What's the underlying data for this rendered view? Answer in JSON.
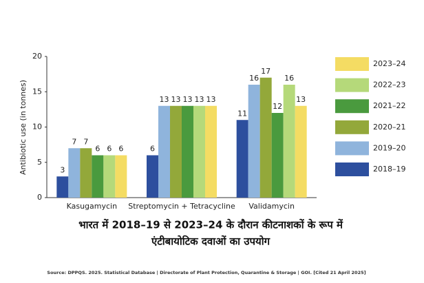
{
  "chart_data": {
    "type": "bar",
    "title": [
      "भारत में 2018–19 से 2023–24 के दौरान कीटनाशकों के रूप में",
      "एंटीबायोटिक दवाओं का उपयोग"
    ],
    "y_label": "Antibiotic use (in tonnes)",
    "source": "Source: DPPQS. 2025. Statistical Database | Directorate of Plant Protection, Quarantine & Storage | GOI. [Cited 21 April 2025]",
    "categories": [
      "Kasugamycin",
      "Streptomycin + Tetracycline",
      "Validamycin"
    ],
    "series": [
      {
        "name": "2018–19",
        "color": "#2d4f9e",
        "values": [
          3,
          6,
          11
        ]
      },
      {
        "name": "2019–20",
        "color": "#8fb4dc",
        "values": [
          7,
          13,
          16
        ]
      },
      {
        "name": "2020–21",
        "color": "#93a83a",
        "values": [
          7,
          13,
          17
        ]
      },
      {
        "name": "2021–22",
        "color": "#4a9a3e",
        "values": [
          6,
          13,
          12
        ]
      },
      {
        "name": "2022–23",
        "color": "#b5d97a",
        "values": [
          6,
          13,
          16
        ]
      },
      {
        "name": "2023–24",
        "color": "#f4dc63",
        "values": [
          6,
          13,
          13
        ]
      }
    ],
    "ylim": [
      0,
      20
    ],
    "yticks": [
      0,
      5,
      10,
      15,
      20
    ],
    "legend": "right"
  }
}
